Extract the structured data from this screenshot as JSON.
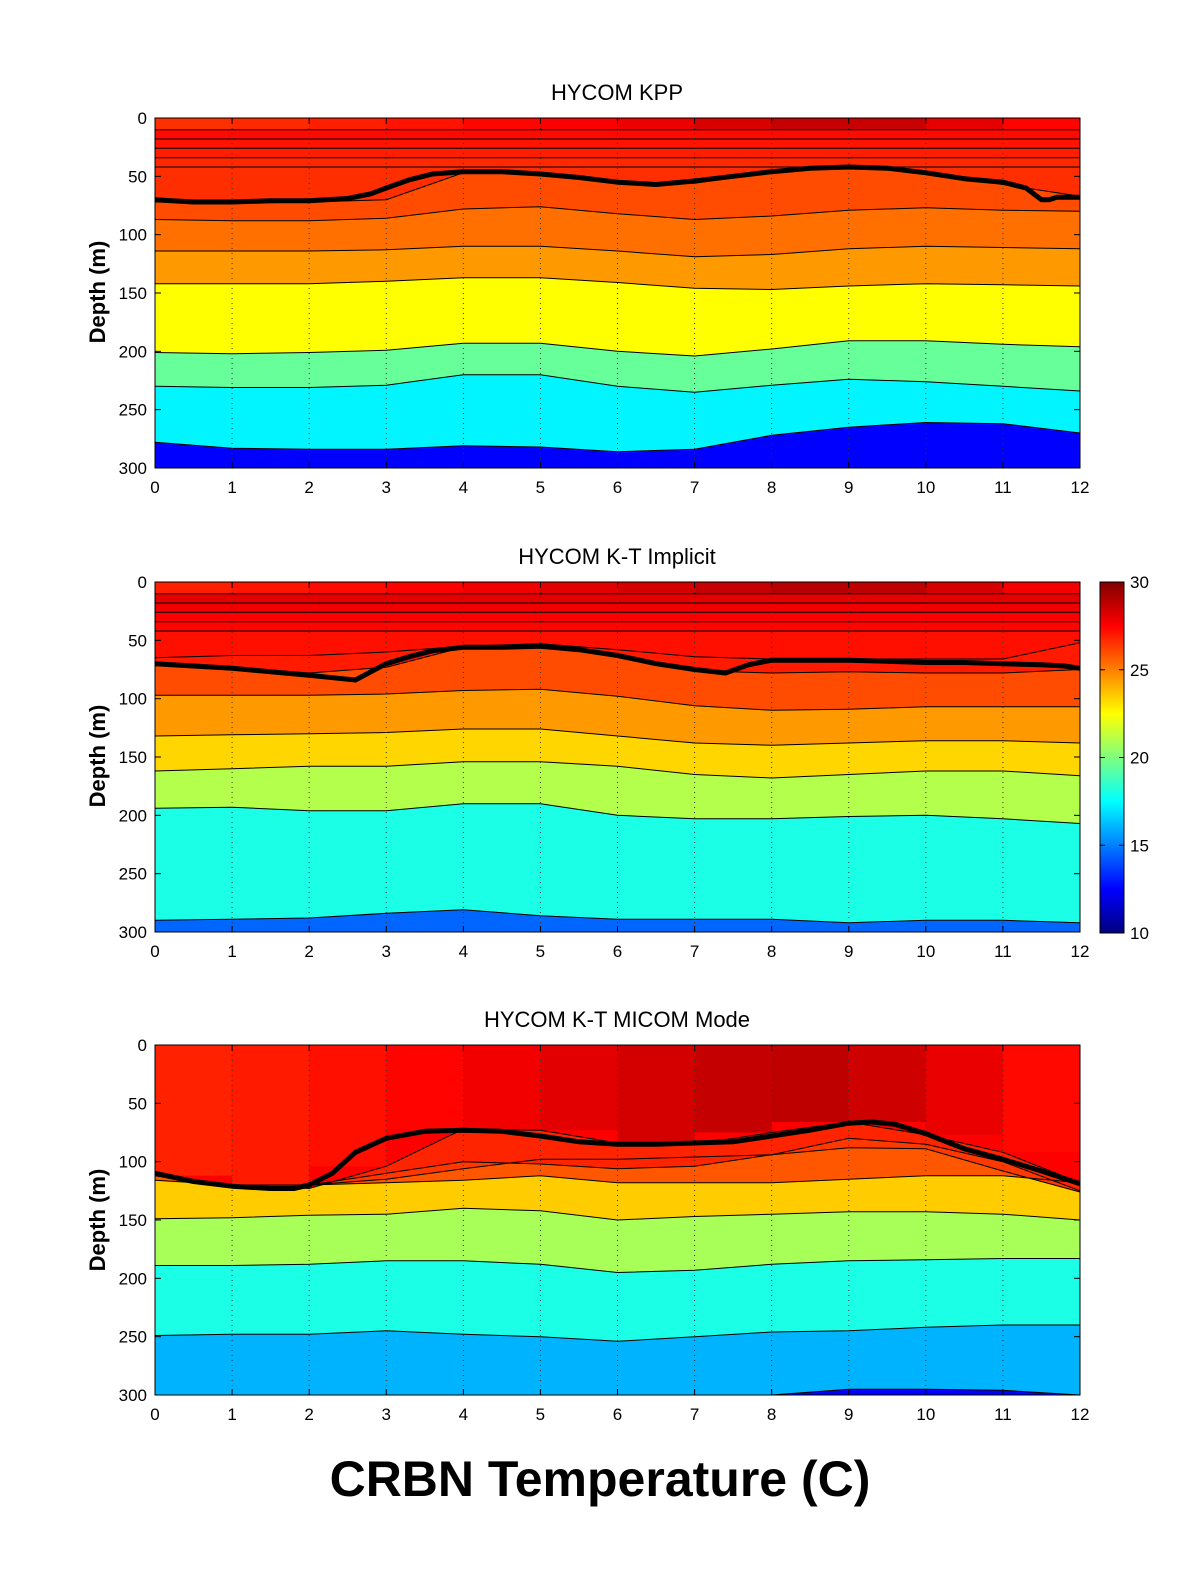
{
  "figure": {
    "title": "CRBN Temperature (C)"
  },
  "colorbar": {
    "min": 10,
    "max": 30,
    "ticks": [
      10,
      15,
      20,
      25,
      30
    ],
    "colormap": "jet"
  },
  "chart_data": [
    {
      "type": "heatmap",
      "title": "HYCOM KPP",
      "xlabel": "",
      "ylabel": "Depth (m)",
      "xlim": [
        0,
        12
      ],
      "ylim": [
        300,
        0
      ],
      "x_ticks": [
        0,
        1,
        2,
        3,
        4,
        5,
        6,
        7,
        8,
        9,
        10,
        11,
        12
      ],
      "y_ticks": [
        0,
        50,
        100,
        150,
        200,
        250,
        300
      ],
      "grid": "vertical dotted",
      "x": [
        0,
        1,
        2,
        3,
        4,
        5,
        6,
        7,
        8,
        9,
        10,
        11,
        12
      ],
      "surface_temperature": [
        26.5,
        26.6,
        26.8,
        27.0,
        27.3,
        27.5,
        27.7,
        28.0,
        28.5,
        28.8,
        28.3,
        27.6,
        27.3
      ],
      "layer_interfaces_m": [
        [
          10,
          10,
          10,
          10,
          10,
          10,
          10,
          10,
          10,
          10,
          10,
          10,
          10
        ],
        [
          18,
          18,
          18,
          18,
          18,
          18,
          18,
          18,
          18,
          18,
          18,
          18,
          18
        ],
        [
          26,
          26,
          26,
          26,
          26,
          26,
          26,
          26,
          26,
          26,
          26,
          26,
          26
        ],
        [
          34,
          34,
          34,
          34,
          34,
          34,
          34,
          34,
          34,
          34,
          34,
          34,
          34
        ],
        [
          42,
          42,
          42,
          42,
          42,
          42,
          42,
          42,
          42,
          42,
          42,
          42,
          42
        ],
        [
          72,
          73,
          72,
          70,
          47,
          48,
          56,
          56,
          46,
          42,
          47,
          57,
          67
        ],
        [
          87,
          88,
          88,
          86,
          78,
          76,
          82,
          87,
          84,
          79,
          77,
          79,
          80
        ],
        [
          114,
          114,
          114,
          113,
          110,
          110,
          114,
          119,
          117,
          112,
          110,
          111,
          112
        ],
        [
          142,
          142,
          142,
          140,
          137,
          137,
          141,
          146,
          147,
          144,
          142,
          143,
          144
        ],
        [
          201,
          202,
          201,
          199,
          193,
          193,
          200,
          204,
          198,
          191,
          191,
          194,
          196
        ],
        [
          230,
          231,
          231,
          229,
          220,
          220,
          230,
          235,
          229,
          224,
          226,
          230,
          234
        ],
        [
          278,
          283,
          284,
          284,
          281,
          282,
          286,
          284,
          272,
          265,
          261,
          262,
          270
        ]
      ],
      "layer_temperatures": [
        27.5,
        27.3,
        27.1,
        26.9,
        26.7,
        26.6,
        26.0,
        25.3,
        24.5,
        22.5,
        19.5,
        17.3,
        12.5
      ],
      "mixed_layer_depth": {
        "x": [
          0,
          0.5,
          1,
          1.5,
          2,
          2.5,
          2.8,
          3.0,
          3.3,
          3.6,
          4.0,
          4.5,
          5.0,
          5.5,
          6.0,
          6.5,
          7.0,
          7.5,
          8.0,
          8.5,
          9.0,
          9.5,
          10.0,
          10.5,
          11.0,
          11.3,
          11.5,
          11.6,
          11.7,
          12.0
        ],
        "y": [
          70,
          72,
          72,
          71,
          71,
          69,
          65,
          60,
          53,
          48,
          46,
          46,
          48,
          51,
          55,
          57,
          54,
          50,
          46,
          43,
          42,
          43,
          47,
          52,
          55,
          60,
          70,
          70,
          68,
          68
        ]
      }
    },
    {
      "type": "heatmap",
      "title": "HYCOM K-T Implicit",
      "xlabel": "",
      "ylabel": "Depth (m)",
      "xlim": [
        0,
        12
      ],
      "ylim": [
        300,
        0
      ],
      "x_ticks": [
        0,
        1,
        2,
        3,
        4,
        5,
        6,
        7,
        8,
        9,
        10,
        11,
        12
      ],
      "y_ticks": [
        0,
        50,
        100,
        150,
        200,
        250,
        300
      ],
      "grid": "vertical dotted",
      "x": [
        0,
        1,
        2,
        3,
        4,
        5,
        6,
        7,
        8,
        9,
        10,
        11,
        12
      ],
      "surface_temperature": [
        26.8,
        27.0,
        27.2,
        27.4,
        27.6,
        27.9,
        28.2,
        28.5,
        28.8,
        29.0,
        28.6,
        28.0,
        27.4
      ],
      "layer_interfaces_m": [
        [
          10,
          10,
          10,
          10,
          10,
          10,
          10,
          10,
          10,
          10,
          10,
          10,
          10
        ],
        [
          18,
          18,
          18,
          18,
          18,
          18,
          18,
          18,
          18,
          18,
          18,
          18,
          18
        ],
        [
          26,
          26,
          26,
          26,
          26,
          26,
          26,
          26,
          26,
          26,
          26,
          26,
          26
        ],
        [
          34,
          34,
          34,
          34,
          34,
          34,
          34,
          34,
          34,
          34,
          34,
          34,
          34
        ],
        [
          42,
          42,
          42,
          42,
          42,
          42,
          42,
          42,
          42,
          42,
          42,
          42,
          42
        ],
        [
          65,
          63,
          63,
          60,
          55,
          53,
          58,
          64,
          66,
          66,
          66,
          66,
          52
        ],
        [
          70,
          73,
          78,
          73,
          56,
          55,
          63,
          76,
          78,
          77,
          78,
          78,
          75
        ],
        [
          97,
          97,
          97,
          96,
          93,
          92,
          98,
          106,
          110,
          109,
          107,
          107,
          107
        ],
        [
          132,
          131,
          130,
          129,
          126,
          126,
          132,
          138,
          140,
          138,
          136,
          136,
          138
        ],
        [
          162,
          160,
          158,
          158,
          154,
          154,
          158,
          165,
          168,
          165,
          162,
          162,
          166
        ],
        [
          194,
          193,
          196,
          196,
          190,
          190,
          200,
          203,
          203,
          201,
          200,
          203,
          207
        ],
        [
          290,
          289,
          288,
          284,
          281,
          286,
          289,
          289,
          289,
          292,
          290,
          290,
          292
        ]
      ],
      "layer_temperatures": [
        28.2,
        28.0,
        27.8,
        27.6,
        27.4,
        27.2,
        27.0,
        26.0,
        24.5,
        23.3,
        21.0,
        18.0,
        14.5
      ],
      "mixed_layer_depth": {
        "x": [
          0,
          0.5,
          1,
          1.5,
          2,
          2.3,
          2.6,
          2.8,
          3.0,
          3.3,
          3.6,
          4.0,
          4.5,
          5.0,
          5.5,
          6.0,
          6.5,
          7.0,
          7.4,
          7.7,
          8.0,
          8.5,
          9.0,
          9.5,
          10.0,
          10.5,
          11.0,
          11.5,
          11.8,
          12.0
        ],
        "y": [
          70,
          72,
          74,
          77,
          80,
          82,
          84,
          77,
          70,
          64,
          59,
          56,
          56,
          55,
          58,
          63,
          70,
          75,
          78,
          71,
          67,
          67,
          67,
          68,
          69,
          69,
          70,
          71,
          72,
          74
        ]
      }
    },
    {
      "type": "heatmap",
      "title": "HYCOM K-T MICOM Mode",
      "xlabel": "",
      "ylabel": "Depth (m)",
      "xlim": [
        0,
        12
      ],
      "ylim": [
        300,
        0
      ],
      "x_ticks": [
        0,
        1,
        2,
        3,
        4,
        5,
        6,
        7,
        8,
        9,
        10,
        11,
        12
      ],
      "y_ticks": [
        0,
        50,
        100,
        150,
        200,
        250,
        300
      ],
      "grid": "vertical dotted",
      "x": [
        0,
        1,
        2,
        3,
        4,
        5,
        6,
        7,
        8,
        9,
        10,
        11,
        12
      ],
      "surface_temperature": [
        26.8,
        26.9,
        27.1,
        27.3,
        27.6,
        27.9,
        28.2,
        28.5,
        28.8,
        28.7,
        28.2,
        27.6,
        27.1
      ],
      "layer_interfaces_m": [
        [
          112,
          120,
          123,
          104,
          72,
          73,
          84,
          85,
          75,
          66,
          77,
          92,
          118
        ],
        [
          112,
          120,
          120,
          110,
          100,
          102,
          106,
          104,
          94,
          80,
          85,
          100,
          125
        ],
        [
          112,
          120,
          120,
          115,
          106,
          98,
          98,
          96,
          94,
          88,
          89,
          108,
          126
        ],
        [
          116,
          120,
          120,
          118,
          116,
          112,
          118,
          118,
          118,
          115,
          112,
          112,
          118
        ],
        [
          149,
          148,
          146,
          145,
          140,
          142,
          150,
          147,
          145,
          143,
          143,
          145,
          150
        ],
        [
          189,
          189,
          188,
          185,
          185,
          188,
          195,
          193,
          188,
          185,
          184,
          183,
          183
        ],
        [
          249,
          248,
          248,
          245,
          248,
          250,
          254,
          250,
          246,
          245,
          242,
          240,
          240
        ],
        [
          300,
          300,
          300,
          300,
          300,
          300,
          300,
          300,
          300,
          295,
          295,
          296,
          300
        ]
      ],
      "layer_temperatures": [
        27.5,
        26.8,
        26.4,
        25.8,
        23.5,
        20.8,
        18.0,
        16.0,
        12.5
      ],
      "mixed_layer_depth": {
        "x": [
          0,
          0.5,
          1,
          1.5,
          1.8,
          2.0,
          2.3,
          2.6,
          3.0,
          3.5,
          4.0,
          4.5,
          5.0,
          5.5,
          6.0,
          6.5,
          7.0,
          7.5,
          8.0,
          8.5,
          9.0,
          9.3,
          9.6,
          10.0,
          10.5,
          11.0,
          11.5,
          12.0
        ],
        "y": [
          110,
          117,
          121,
          123,
          123,
          120,
          110,
          92,
          80,
          74,
          73,
          74,
          78,
          83,
          85,
          85,
          84,
          83,
          78,
          73,
          67,
          66,
          68,
          76,
          89,
          98,
          108,
          119
        ]
      }
    }
  ]
}
